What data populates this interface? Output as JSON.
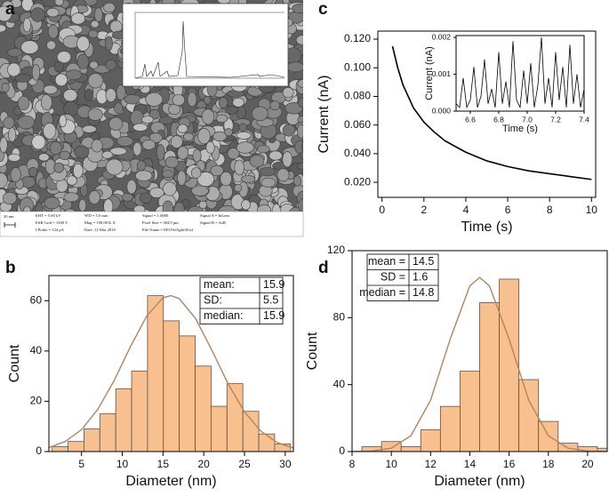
{
  "panel_labels": [
    "a",
    "b",
    "c",
    "d"
  ],
  "sem_info": [
    [
      "20 nm"
    ],
    [
      "EHT = 5.00 kV",
      "WD = 5.0 mm",
      "Signal = 1.0000",
      "Signal A = InLens"
    ],
    [
      "ESB Grid = 1500 V",
      "Mag = 190.00 K X",
      "Pixel Size = 584.9 pm",
      "Signal B = AsB"
    ],
    [
      "I Probe = 124 pA",
      "Date :12 Mar 2018",
      "File Name = EEOVeAgIn30.tif"
    ]
  ],
  "chart_data": [
    {
      "type": "line",
      "xlabel": "Time (s)",
      "ylabel": "Current (nA)",
      "xlim": [
        -0.2,
        10.2
      ],
      "ylim": [
        0.0095,
        0.1256
      ],
      "xticks": [
        0,
        2,
        4,
        6,
        8,
        10
      ],
      "yticks": [
        {
          "value": 0.02,
          "label": "0.020"
        },
        {
          "value": 0.04,
          "label": "0.040"
        },
        {
          "value": 0.06,
          "label": "0.060"
        },
        {
          "value": 0.08,
          "label": "0.080"
        },
        {
          "value": 0.1,
          "label": "0.100"
        },
        {
          "value": 0.12,
          "label": "0.120"
        }
      ],
      "color": "#000000",
      "x": [
        0.5,
        0.75,
        1,
        1.5,
        2,
        2.5,
        3,
        4,
        5,
        6,
        7,
        8,
        9,
        10
      ],
      "values": [
        0.115,
        0.1,
        0.088,
        0.072,
        0.062,
        0.055,
        0.049,
        0.041,
        0.035,
        0.031,
        0.028,
        0.026,
        0.024,
        0.022
      ],
      "inset": {
        "type": "line",
        "xlabel": "Time (s)",
        "ylabel": "Current (nA)",
        "xlim": [
          6.5,
          7.4
        ],
        "ylim": [
          0,
          0.00205
        ],
        "xticks": [
          6.6,
          6.8,
          {
            "value": 7,
            "label": "7.0"
          },
          7.2,
          7.4
        ],
        "yticks": [
          {
            "value": 0,
            "label": "0.000"
          },
          {
            "value": 0.001,
            "label": "0.001"
          },
          {
            "value": 0.002,
            "label": "0.002"
          }
        ],
        "color": "#000000",
        "x": [
          6.5,
          6.525,
          6.55,
          6.575,
          6.6,
          6.625,
          6.65,
          6.675,
          6.7,
          6.725,
          6.75,
          6.775,
          6.8,
          6.825,
          6.85,
          6.875,
          6.9,
          6.925,
          6.95,
          6.975,
          7.0,
          7.025,
          7.05,
          7.075,
          7.1,
          7.125,
          7.15,
          7.175,
          7.2,
          7.225,
          7.25,
          7.275,
          7.3,
          7.325,
          7.35,
          7.375,
          7.4
        ],
        "values": [
          0.0002,
          0.0001,
          0.0009,
          0.0001,
          0.0003,
          0.0012,
          0.0001,
          0.0004,
          0.0014,
          0.0002,
          0.0006,
          0.0001,
          0.0016,
          0.0002,
          0.0008,
          0.0001,
          0.0019,
          0.0003,
          0.0001,
          0.0011,
          0.0002,
          0.0013,
          0.0001,
          0.0007,
          0.002,
          0.0002,
          0.0009,
          0.0001,
          0.0016,
          0.0003,
          0.0012,
          0.0001,
          0.0018,
          0.0002,
          0.001,
          0.0001,
          0.0006
        ]
      }
    },
    {
      "type": "histogram",
      "xlabel": "Diameter (nm)",
      "ylabel": "Count",
      "xlim": [
        1,
        31
      ],
      "ylim": [
        0,
        70
      ],
      "xticks": [
        5,
        10,
        15,
        20,
        25,
        30
      ],
      "yticks": [
        0,
        20,
        40,
        60
      ],
      "color": "#f9c08f",
      "bins": [
        1.4,
        3.35,
        5.3,
        7.25,
        9.2,
        11.15,
        13.1,
        15.05,
        17,
        18.95,
        20.9,
        22.85,
        24.8,
        26.75,
        28.7,
        30.65
      ],
      "counts": [
        2,
        4,
        9,
        15,
        25,
        32,
        62,
        52,
        46,
        34,
        18,
        27,
        16,
        7,
        3
      ],
      "fit": {
        "color": "#b08560",
        "x": [
          1,
          3,
          5,
          7,
          9,
          11,
          13,
          15,
          16,
          17,
          19,
          21,
          23,
          25,
          27,
          29,
          31
        ],
        "values": [
          1.6,
          4,
          8.7,
          16.8,
          28.2,
          41.7,
          53.9,
          61.2,
          62,
          60.8,
          52.9,
          40.3,
          26.9,
          15.8,
          8.1,
          3.6,
          1.4
        ]
      },
      "stats_table": [
        [
          "mean:",
          "15.9"
        ],
        [
          "SD:",
          "5.5"
        ],
        [
          "median:",
          "15.9"
        ]
      ]
    },
    {
      "type": "histogram",
      "xlabel": "Diameter (nm)",
      "ylabel": "Count",
      "xlim": [
        8,
        21
      ],
      "ylim": [
        0,
        120
      ],
      "xticks": [
        8,
        10,
        12,
        14,
        16,
        18,
        20
      ],
      "yticks": [
        0,
        40,
        80,
        120
      ],
      "color": "#f9c08f",
      "bins": [
        8.5,
        9.5,
        10.5,
        11.5,
        12.5,
        13.5,
        14.5,
        15.5,
        16.5,
        17.5,
        18.5,
        19.5,
        20.5,
        21.5
      ],
      "counts": [
        3,
        6,
        3,
        13,
        27,
        48,
        89,
        103,
        43,
        18,
        5,
        3,
        2
      ],
      "fit": {
        "color": "#b08560",
        "x": [
          8,
          9,
          10,
          11,
          12,
          13,
          14,
          14.5,
          15,
          16,
          17,
          18,
          19,
          20,
          21
        ],
        "values": [
          0.03,
          0.28,
          1.99,
          9.5,
          30.7,
          67.2,
          99,
          104,
          99,
          67.2,
          30.7,
          9.5,
          1.99,
          0.28,
          0.03
        ]
      },
      "stats_table": [
        [
          "mean =",
          "14.5"
        ],
        [
          "SD =",
          "1.6"
        ],
        [
          "median =",
          "14.8"
        ]
      ]
    }
  ]
}
